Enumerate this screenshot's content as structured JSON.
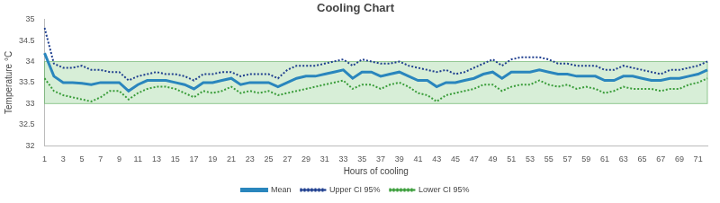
{
  "chart_data": {
    "type": "line",
    "title": "Cooling Chart",
    "x_label": "Hours of cooling",
    "y_label": "Temperature °C",
    "categories": [
      1,
      null,
      3,
      null,
      5,
      null,
      7,
      null,
      9,
      null,
      11,
      null,
      13,
      null,
      15,
      null,
      17,
      null,
      19,
      null,
      21,
      null,
      23,
      null,
      25,
      null,
      27,
      null,
      29,
      null,
      31,
      null,
      33,
      null,
      35,
      null,
      37,
      null,
      39,
      null,
      41,
      null,
      43,
      null,
      45,
      null,
      47,
      null,
      49,
      null,
      51,
      null,
      53,
      null,
      55,
      null,
      57,
      null,
      59,
      null,
      61,
      null,
      63,
      null,
      65,
      null,
      67,
      null,
      69,
      null,
      71,
      null
    ],
    "series": [
      {
        "name": "Mean",
        "color": "#2a86bd",
        "line_style": "solid",
        "marker": "none",
        "values": [
          34.2,
          33.65,
          33.5,
          33.5,
          33.48,
          33.45,
          33.5,
          33.5,
          33.5,
          33.3,
          33.45,
          33.55,
          33.55,
          33.55,
          33.5,
          33.45,
          33.35,
          33.5,
          33.5,
          33.55,
          33.6,
          33.45,
          33.5,
          33.5,
          33.5,
          33.4,
          33.5,
          33.6,
          33.65,
          33.65,
          33.7,
          33.75,
          33.8,
          33.6,
          33.75,
          33.75,
          33.65,
          33.7,
          33.75,
          33.65,
          33.55,
          33.55,
          33.4,
          33.5,
          33.5,
          33.55,
          33.6,
          33.7,
          33.75,
          33.6,
          33.75,
          33.75,
          33.75,
          33.8,
          33.75,
          33.7,
          33.7,
          33.65,
          33.65,
          33.65,
          33.55,
          33.55,
          33.65,
          33.65,
          33.6,
          33.55,
          33.55,
          33.6,
          33.6,
          33.65,
          33.7,
          33.8
        ]
      },
      {
        "name": "Upper CI 95%",
        "color": "#1f3f8f",
        "line_style": "dotted",
        "marker": "none",
        "values": [
          34.8,
          33.95,
          33.85,
          33.85,
          33.9,
          33.8,
          33.8,
          33.75,
          33.75,
          33.55,
          33.65,
          33.7,
          33.75,
          33.7,
          33.7,
          33.65,
          33.55,
          33.7,
          33.7,
          33.75,
          33.75,
          33.65,
          33.7,
          33.7,
          33.7,
          33.6,
          33.8,
          33.9,
          33.9,
          33.9,
          33.95,
          34.0,
          34.05,
          33.9,
          34.05,
          34.0,
          33.95,
          33.95,
          34.0,
          33.9,
          33.85,
          33.8,
          33.75,
          33.8,
          33.7,
          33.75,
          33.85,
          33.95,
          34.05,
          33.9,
          34.05,
          34.1,
          34.1,
          34.1,
          34.05,
          33.95,
          33.95,
          33.9,
          33.9,
          33.9,
          33.8,
          33.8,
          33.9,
          33.85,
          33.8,
          33.75,
          33.7,
          33.8,
          33.8,
          33.85,
          33.9,
          34.0
        ]
      },
      {
        "name": "Lower CI 95%",
        "color": "#3a9d3a",
        "line_style": "dotted",
        "marker": "none",
        "values": [
          33.6,
          33.3,
          33.2,
          33.15,
          33.1,
          33.05,
          33.15,
          33.3,
          33.3,
          33.1,
          33.25,
          33.35,
          33.4,
          33.4,
          33.35,
          33.25,
          33.15,
          33.3,
          33.25,
          33.3,
          33.4,
          33.25,
          33.3,
          33.25,
          33.3,
          33.2,
          33.25,
          33.3,
          33.35,
          33.4,
          33.45,
          33.5,
          33.55,
          33.35,
          33.45,
          33.45,
          33.35,
          33.45,
          33.5,
          33.4,
          33.25,
          33.2,
          33.05,
          33.2,
          33.25,
          33.3,
          33.35,
          33.45,
          33.45,
          33.3,
          33.4,
          33.45,
          33.45,
          33.55,
          33.45,
          33.4,
          33.45,
          33.35,
          33.4,
          33.35,
          33.25,
          33.3,
          33.4,
          33.35,
          33.35,
          33.35,
          33.3,
          33.35,
          33.35,
          33.45,
          33.5,
          33.6
        ]
      }
    ],
    "band": [
      33,
      34
    ],
    "ylim": [
      32,
      35
    ],
    "yticks": [
      32,
      32.5,
      33,
      33.5,
      34,
      34.5,
      35
    ],
    "grid": false,
    "legend": "bottom"
  }
}
